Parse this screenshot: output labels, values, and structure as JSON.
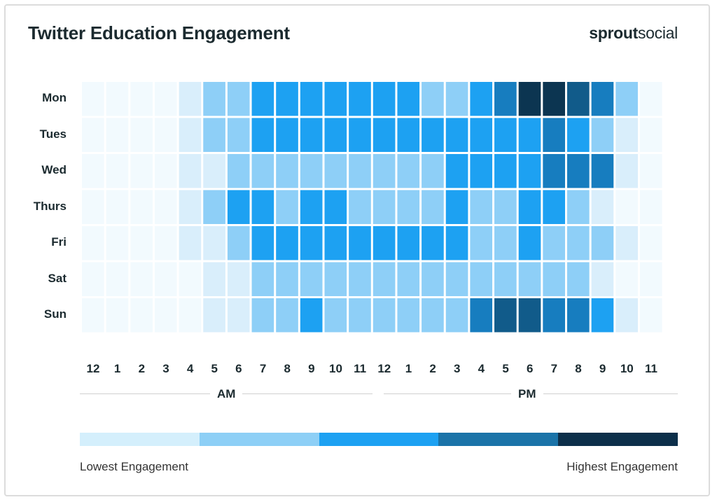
{
  "title": "Twitter Education Engagement",
  "logo": {
    "bold": "sprout",
    "regular": "social"
  },
  "chart_data": {
    "type": "heatmap",
    "title": "Twitter Education Engagement",
    "rows": [
      "Mon",
      "Tues",
      "Wed",
      "Thurs",
      "Fri",
      "Sat",
      "Sun"
    ],
    "columns": [
      "12",
      "1",
      "2",
      "3",
      "4",
      "5",
      "6",
      "7",
      "8",
      "9",
      "10",
      "11",
      "12",
      "1",
      "2",
      "3",
      "4",
      "5",
      "6",
      "7",
      "8",
      "9",
      "10",
      "11"
    ],
    "periods": [
      "AM",
      "PM"
    ],
    "scale_levels": 7,
    "values": [
      [
        0,
        0,
        0,
        0,
        1,
        2,
        2,
        3,
        3,
        3,
        3,
        3,
        3,
        3,
        2,
        2,
        3,
        4,
        6,
        6,
        5,
        4,
        2,
        0
      ],
      [
        0,
        0,
        0,
        0,
        1,
        2,
        2,
        3,
        3,
        3,
        3,
        3,
        3,
        3,
        3,
        3,
        3,
        3,
        3,
        4,
        3,
        2,
        1,
        0
      ],
      [
        0,
        0,
        0,
        0,
        1,
        1,
        2,
        2,
        2,
        2,
        2,
        2,
        2,
        2,
        2,
        3,
        3,
        3,
        3,
        4,
        4,
        4,
        1,
        0
      ],
      [
        0,
        0,
        0,
        0,
        1,
        2,
        3,
        3,
        2,
        3,
        3,
        2,
        2,
        2,
        2,
        3,
        2,
        2,
        3,
        3,
        2,
        1,
        0,
        0
      ],
      [
        0,
        0,
        0,
        0,
        1,
        1,
        2,
        3,
        3,
        3,
        3,
        3,
        3,
        3,
        3,
        3,
        2,
        2,
        3,
        2,
        2,
        2,
        1,
        0
      ],
      [
        0,
        0,
        0,
        0,
        0,
        1,
        1,
        2,
        2,
        2,
        2,
        2,
        2,
        2,
        2,
        2,
        2,
        2,
        2,
        2,
        2,
        1,
        0,
        0
      ],
      [
        0,
        0,
        0,
        0,
        0,
        1,
        1,
        2,
        2,
        3,
        2,
        2,
        2,
        2,
        2,
        2,
        4,
        5,
        5,
        4,
        4,
        3,
        1,
        0
      ]
    ],
    "cell_colors": [
      "#f2fafe",
      "#d9eefb",
      "#8ecff7",
      "#1da1f2",
      "#177dbf",
      "#115b8a",
      "#0c3551"
    ],
    "legend": {
      "colors": [
        "#d4effc",
        "#8dcff6",
        "#1da1f2",
        "#1a73a8",
        "#0c2f4a"
      ],
      "low_label": "Lowest Engagement",
      "high_label": "Highest Engagement"
    }
  }
}
